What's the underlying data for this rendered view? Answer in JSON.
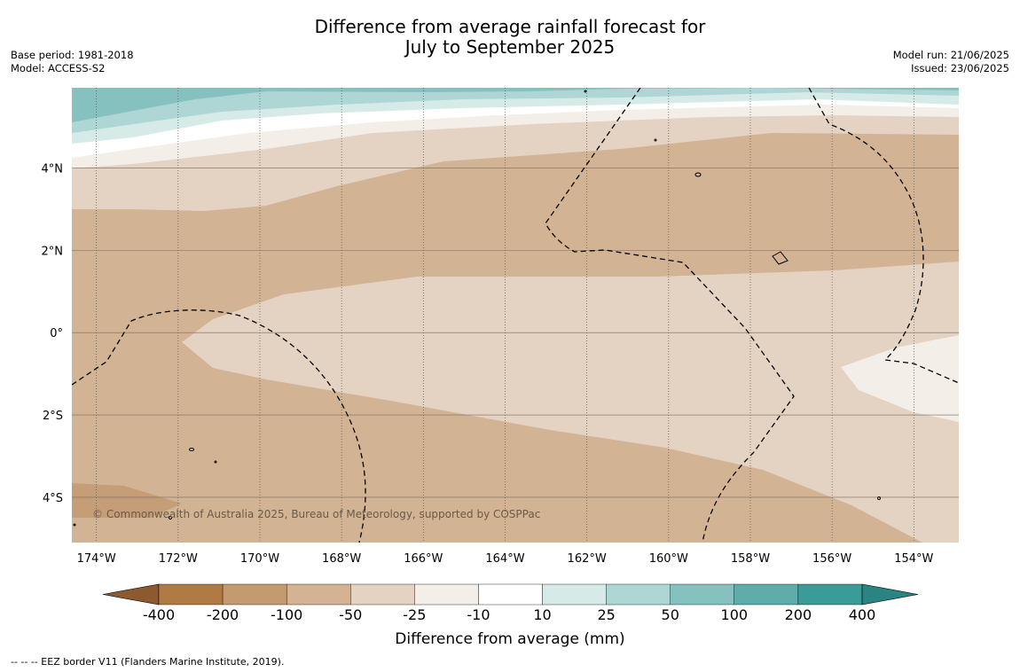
{
  "title": {
    "line1": "Difference from average rainfall forecast for",
    "line2": "July to September 2025"
  },
  "meta": {
    "base_period": "Base period: 1981-2018",
    "model": "Model: ACCESS-S2",
    "model_run": "Model run: 21/06/2025",
    "issued": "Issued: 23/06/2025"
  },
  "map": {
    "lon_range": [
      -174.6,
      -152.9
    ],
    "lat_range": [
      -5.1,
      5.95
    ],
    "lon_ticks": [
      {
        "value": -174,
        "label": "174°W"
      },
      {
        "value": -172,
        "label": "172°W"
      },
      {
        "value": -170,
        "label": "170°W"
      },
      {
        "value": -168,
        "label": "168°W"
      },
      {
        "value": -166,
        "label": "166°W"
      },
      {
        "value": -164,
        "label": "164°W"
      },
      {
        "value": -162,
        "label": "162°W"
      },
      {
        "value": -160,
        "label": "160°W"
      },
      {
        "value": -158,
        "label": "158°W"
      },
      {
        "value": -156,
        "label": "156°W"
      },
      {
        "value": -154,
        "label": "154°W"
      }
    ],
    "lat_ticks": [
      {
        "value": 4,
        "label": "4°N"
      },
      {
        "value": 2,
        "label": "2°N"
      },
      {
        "value": 0,
        "label": "0°"
      },
      {
        "value": -2,
        "label": "2°S"
      },
      {
        "value": -4,
        "label": "4°S"
      }
    ],
    "background_category": "-50 to -100",
    "copyright": "© Commonwealth of Australia 2025, Bureau of Meteorology, supported by COSPPac"
  },
  "colorbar": {
    "label": "Difference from average (mm)",
    "ticks": [
      "-400",
      "-200",
      "-100",
      "-50",
      "-25",
      "-10",
      "10",
      "25",
      "50",
      "100",
      "200",
      "400"
    ],
    "colors": [
      "#8c5a2e",
      "#b07a45",
      "#c49a70",
      "#d3b393",
      "#e4d2c2",
      "#f3eee8",
      "#ffffff",
      "#d6eae8",
      "#add6d4",
      "#85c2bf",
      "#5eadaa",
      "#3a9b98",
      "#2a8582"
    ]
  },
  "footnote": "--  --  -- EEZ border V11 (Flanders Marine Institute, 2019)."
}
